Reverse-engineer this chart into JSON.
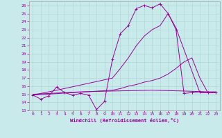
{
  "xlabel": "Windchill (Refroidissement éolien,°C)",
  "bg_color": "#c8eaea",
  "grid_color": "#b0d8d8",
  "line_color": "#990099",
  "spine_color": "#aaaaaa",
  "xlim": [
    -0.5,
    23.5
  ],
  "ylim": [
    13,
    26.5
  ],
  "xticks": [
    0,
    1,
    2,
    3,
    4,
    5,
    6,
    7,
    8,
    9,
    10,
    11,
    12,
    13,
    14,
    15,
    16,
    17,
    18,
    19,
    20,
    21,
    22,
    23
  ],
  "yticks": [
    13,
    14,
    15,
    16,
    17,
    18,
    19,
    20,
    21,
    22,
    23,
    24,
    25,
    26
  ],
  "series": [
    {
      "x": [
        0,
        1,
        2,
        3,
        4,
        5,
        6,
        7,
        8,
        9,
        10,
        11,
        12,
        13,
        14,
        15,
        16,
        17,
        18,
        19,
        20,
        21,
        22,
        23
      ],
      "y": [
        14.9,
        14.4,
        14.8,
        15.9,
        15.2,
        14.9,
        15.1,
        14.9,
        13.1,
        14.1,
        19.3,
        22.5,
        23.5,
        25.6,
        26.0,
        25.7,
        26.2,
        25.0,
        23.0,
        15.1,
        15.2,
        15.3,
        15.2,
        15.2
      ],
      "marker": "+"
    },
    {
      "x": [
        0,
        3,
        10,
        11,
        12,
        13,
        14,
        15,
        16,
        17,
        18,
        21,
        22,
        23
      ],
      "y": [
        14.9,
        15.5,
        17.0,
        18.2,
        19.5,
        21.0,
        22.2,
        23.0,
        23.5,
        25.0,
        23.2,
        15.2,
        15.2,
        15.2
      ],
      "marker": null
    },
    {
      "x": [
        0,
        10,
        11,
        12,
        13,
        14,
        15,
        16,
        17,
        18,
        19,
        20,
        21,
        22,
        23
      ],
      "y": [
        14.9,
        15.5,
        15.7,
        16.0,
        16.2,
        16.5,
        16.7,
        17.0,
        17.5,
        18.2,
        19.0,
        19.5,
        17.0,
        15.2,
        15.2
      ],
      "marker": null
    },
    {
      "x": [
        0,
        6,
        10,
        15,
        19,
        22,
        23
      ],
      "y": [
        15.0,
        15.3,
        15.4,
        15.5,
        15.4,
        15.3,
        15.3
      ],
      "marker": null
    }
  ]
}
